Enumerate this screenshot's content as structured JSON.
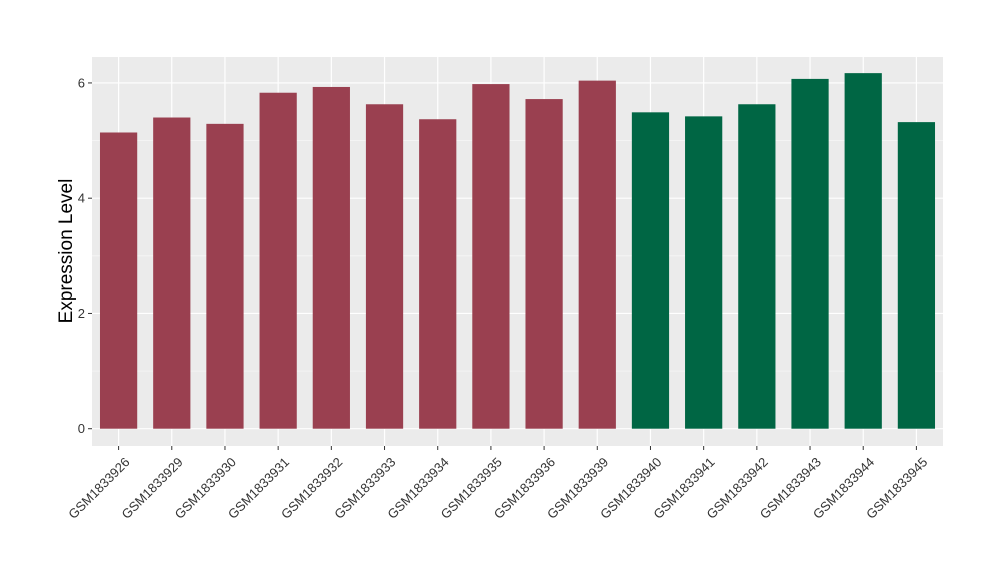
{
  "chart_data": {
    "type": "bar",
    "title": "",
    "xlabel": "",
    "ylabel": "Expression Level",
    "ylim": [
      -0.3,
      6.45
    ],
    "yticks": [
      0,
      2,
      4,
      6
    ],
    "grid": true,
    "legend": "none",
    "categories": [
      "GSM1833926",
      "GSM1833929",
      "GSM1833930",
      "GSM1833931",
      "GSM1833932",
      "GSM1833933",
      "GSM1833934",
      "GSM1833935",
      "GSM1833936",
      "GSM1833939",
      "GSM1833940",
      "GSM1833941",
      "GSM1833942",
      "GSM1833943",
      "GSM1833944",
      "GSM1833945"
    ],
    "values": [
      5.14,
      5.4,
      5.29,
      5.83,
      5.93,
      5.63,
      5.37,
      5.98,
      5.72,
      6.04,
      5.49,
      5.42,
      5.63,
      6.07,
      6.17,
      5.32
    ],
    "groups": [
      0,
      0,
      0,
      0,
      0,
      0,
      0,
      0,
      0,
      0,
      1,
      1,
      1,
      1,
      1,
      1
    ],
    "group_colors": [
      "#9a4050",
      "#006644"
    ]
  }
}
